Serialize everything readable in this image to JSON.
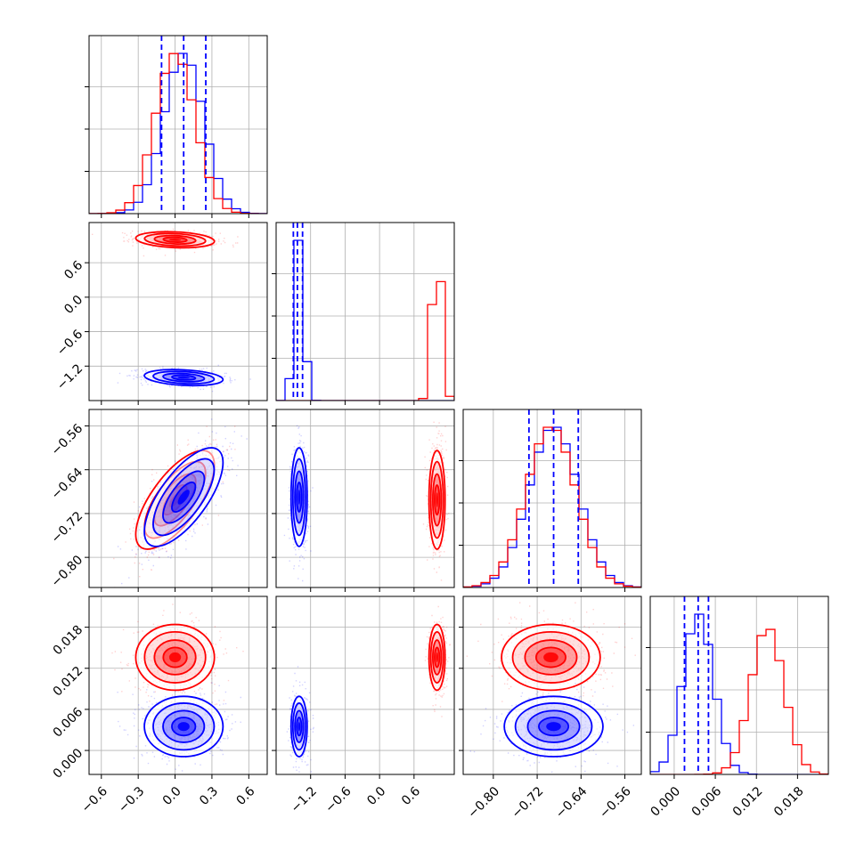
{
  "colors": {
    "series_a": "#ff0000",
    "series_b": "#0000ff",
    "grid": "#b0b0b0"
  },
  "chart_data": {
    "type": "corner",
    "grid": true,
    "parameters": [
      {
        "range": [
          -0.7,
          0.75
        ],
        "ticks": [
          -0.6,
          -0.3,
          0.0,
          0.3,
          0.6
        ],
        "tick_labels": [
          "−0.6",
          "−0.3",
          "0.0",
          "0.3",
          "0.6"
        ]
      },
      {
        "range": [
          -1.8,
          1.3
        ],
        "ticks": [
          -1.2,
          -0.6,
          0.0,
          0.6
        ],
        "tick_labels": [
          "−1.2",
          "−0.6",
          "0.0",
          "0.6"
        ]
      },
      {
        "range": [
          -0.855,
          -0.53
        ],
        "ticks": [
          -0.8,
          -0.72,
          -0.64,
          -0.56
        ],
        "tick_labels": [
          "−0.80",
          "−0.72",
          "−0.64",
          "−0.56"
        ]
      },
      {
        "range": [
          -0.0035,
          0.0225
        ],
        "ticks": [
          0.0,
          0.006,
          0.012,
          0.018
        ],
        "tick_labels": [
          "0.000",
          "0.006",
          "0.012",
          "0.018"
        ]
      }
    ],
    "series": [
      {
        "name": "",
        "color": "#ff0000",
        "means": [
          0.0,
          1.0,
          -0.695,
          0.0136
        ],
        "stds": [
          0.16,
          0.07,
          0.045,
          0.0024
        ],
        "correlations": {
          "2-0": 0.7,
          "1-0": -0.2
        }
      },
      {
        "name": "",
        "color": "#0000ff",
        "means": [
          0.07,
          -1.4,
          -0.69,
          0.0035
        ],
        "stds": [
          0.16,
          0.07,
          0.045,
          0.0022
        ],
        "correlations": {
          "2-0": 0.7,
          "1-0": -0.25
        },
        "quantiles": [
          [
            -0.11,
            0.07,
            0.25
          ],
          [
            -1.5,
            -1.43,
            -1.34
          ],
          [
            -0.735,
            -0.69,
            -0.645
          ],
          [
            0.0015,
            0.0035,
            0.005
          ]
        ]
      }
    ]
  }
}
